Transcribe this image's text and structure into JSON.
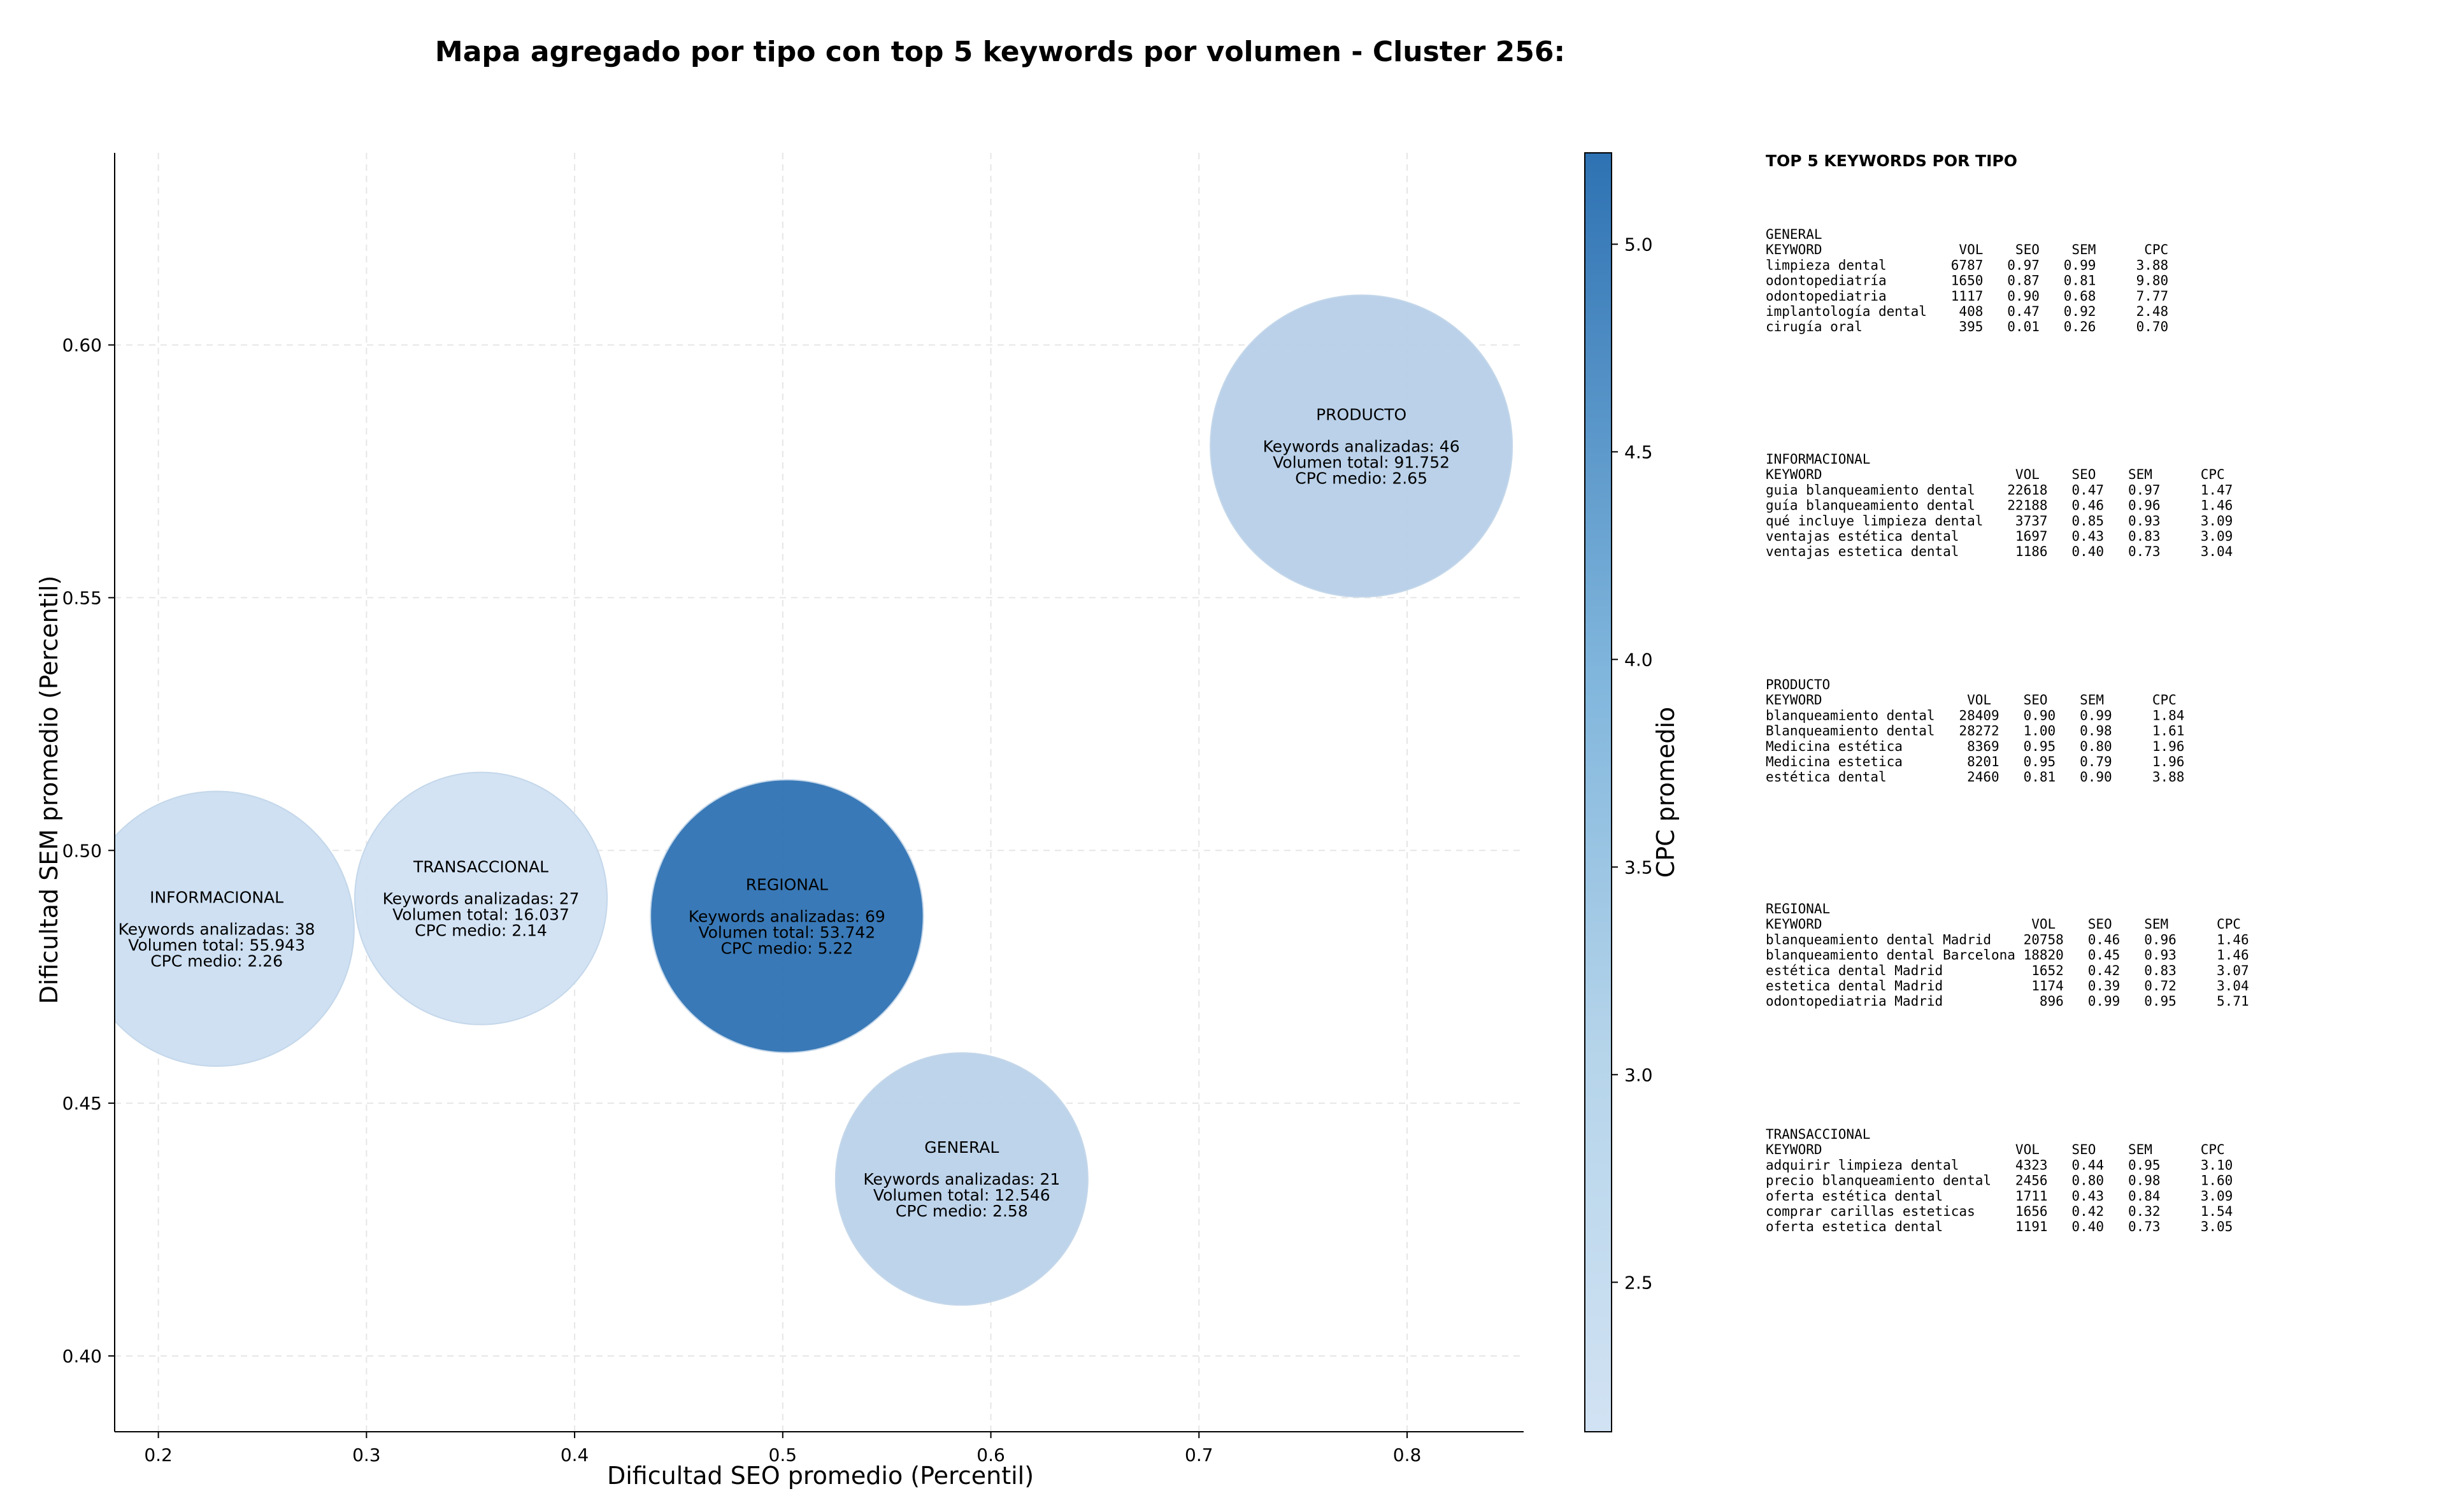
{
  "chart_data": {
    "type": "scatter",
    "title": "Mapa agregado por tipo con top 5 keywords por volumen - Cluster 256:",
    "xlabel": "Dificultad SEO promedio (Percentil)",
    "ylabel": "Dificultad SEM promedio (Percentil)",
    "xlim": [
      0.179,
      0.856
    ],
    "ylim": [
      0.385,
      0.638
    ],
    "xticks": [
      "0.2",
      "0.3",
      "0.4",
      "0.5",
      "0.6",
      "0.7",
      "0.8"
    ],
    "yticks": [
      "0.40",
      "0.45",
      "0.50",
      "0.55",
      "0.60"
    ],
    "grid": true,
    "colorbar": {
      "label": "CPC promedio",
      "range": [
        2.14,
        5.22
      ],
      "ticks": [
        "2.5",
        "3.0",
        "3.5",
        "4.0",
        "4.5",
        "5.0"
      ],
      "color_low": "#d1e2f3",
      "color_high": "#2e72b3"
    },
    "points": [
      {
        "type": "INFORMACIONAL",
        "x": 0.228,
        "y": 0.4845,
        "keywords": 38,
        "volume": 55943,
        "cpc": 2.26,
        "lines": [
          "INFORMACIONAL",
          "",
          "Keywords analizadas: 38",
          "Volumen total: 55.943",
          "CPC medio: 2.26"
        ]
      },
      {
        "type": "TRANSACCIONAL",
        "x": 0.355,
        "y": 0.4905,
        "keywords": 27,
        "volume": 16037,
        "cpc": 2.14,
        "lines": [
          "TRANSACCIONAL",
          "",
          "Keywords analizadas: 27",
          "Volumen total: 16.037",
          "CPC medio: 2.14"
        ]
      },
      {
        "type": "REGIONAL",
        "x": 0.502,
        "y": 0.487,
        "keywords": 69,
        "volume": 53742,
        "cpc": 5.22,
        "lines": [
          "REGIONAL",
          "",
          "Keywords analizadas: 69",
          "Volumen total: 53.742",
          "CPC medio: 5.22"
        ]
      },
      {
        "type": "PRODUCTO",
        "x": 0.778,
        "y": 0.58,
        "keywords": 46,
        "volume": 91752,
        "cpc": 2.65,
        "lines": [
          "PRODUCTO",
          "",
          "Keywords analizadas: 46",
          "Volumen total: 91.752",
          "CPC medio: 2.65"
        ]
      },
      {
        "type": "GENERAL",
        "x": 0.586,
        "y": 0.435,
        "keywords": 21,
        "volume": 12546,
        "cpc": 2.58,
        "lines": [
          "GENERAL",
          "",
          "Keywords analizadas: 21",
          "Volumen total: 12.546",
          "CPC medio: 2.58"
        ]
      }
    ]
  },
  "side_panel": {
    "title": "TOP 5 KEYWORDS POR TIPO",
    "sections": [
      {
        "name": "GENERAL",
        "lines": [
          "GENERAL",
          "KEYWORD                 VOL    SEO    SEM      CPC",
          "limpieza dental        6787   0.97   0.99     3.88",
          "odontopediatría        1650   0.87   0.81     9.80",
          "odontopediatria        1117   0.90   0.68     7.77",
          "implantología dental    408   0.47   0.92     2.48",
          "cirugía oral            395   0.01   0.26     0.70"
        ]
      },
      {
        "name": "INFORMACIONAL",
        "lines": [
          "INFORMACIONAL",
          "KEYWORD                        VOL    SEO    SEM      CPC",
          "guia blanqueamiento dental    22618   0.47   0.97     1.47",
          "guía blanqueamiento dental    22188   0.46   0.96     1.46",
          "qué incluye limpieza dental    3737   0.85   0.93     3.09",
          "ventajas estética dental       1697   0.43   0.83     3.09",
          "ventajas estetica dental       1186   0.40   0.73     3.04"
        ]
      },
      {
        "name": "PRODUCTO",
        "lines": [
          "PRODUCTO",
          "KEYWORD                  VOL    SEO    SEM      CPC",
          "blanqueamiento dental   28409   0.90   0.99     1.84",
          "Blanqueamiento dental   28272   1.00   0.98     1.61",
          "Medicina estética        8369   0.95   0.80     1.96",
          "Medicina estetica        8201   0.95   0.79     1.96",
          "estética dental          2460   0.81   0.90     3.88"
        ]
      },
      {
        "name": "REGIONAL",
        "lines": [
          "REGIONAL",
          "KEYWORD                          VOL    SEO    SEM      CPC",
          "blanqueamiento dental Madrid    20758   0.46   0.96     1.46",
          "blanqueamiento dental Barcelona 18820   0.45   0.93     1.46",
          "estética dental Madrid           1652   0.42   0.83     3.07",
          "estetica dental Madrid           1174   0.39   0.72     3.04",
          "odontopediatria Madrid            896   0.99   0.95     5.71"
        ]
      },
      {
        "name": "TRANSACCIONAL",
        "lines": [
          "TRANSACCIONAL",
          "KEYWORD                        VOL    SEO    SEM      CPC",
          "adquirir limpieza dental       4323   0.44   0.95     3.10",
          "precio blanqueamiento dental   2456   0.80   0.98     1.60",
          "oferta estética dental         1711   0.43   0.84     3.09",
          "comprar carillas esteticas     1656   0.42   0.32     1.54",
          "oferta estetica dental         1191   0.40   0.73     3.05"
        ]
      }
    ]
  }
}
